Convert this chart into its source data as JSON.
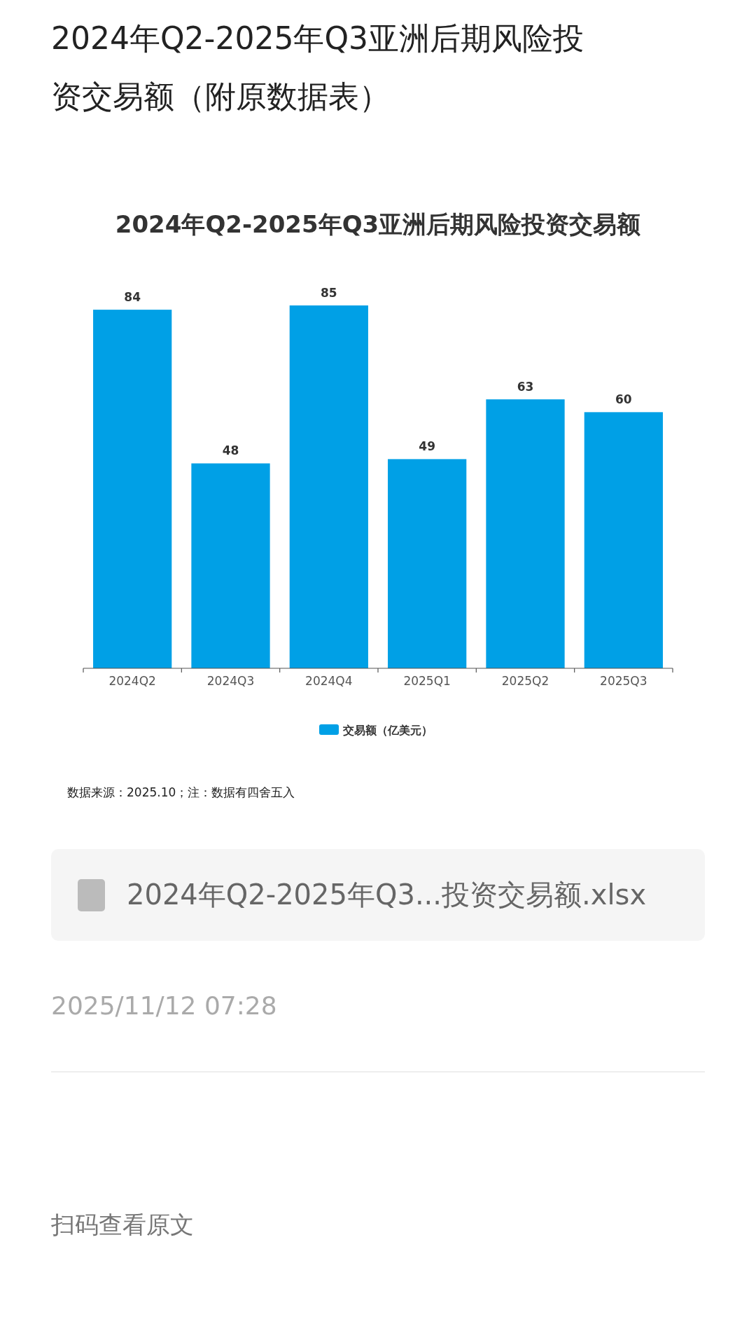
{
  "chart_data": {
    "type": "bar",
    "title": "2024年Q2-2025年Q3亚洲后期风险投资交易额（附原数据表）",
    "subtitle": "2024年Q2-2025年Q3亚洲后期风险投资交易额",
    "categories": [
      "2024Q2",
      "2024Q3",
      "2024Q4",
      "2025Q1",
      "2025Q2",
      "2025Q3"
    ],
    "series": [
      {
        "name": "交易额（亿美元）",
        "color": "#00a0e6",
        "values": [
          84,
          48,
          85,
          49,
          63,
          60
        ]
      }
    ],
    "data_labels": true,
    "legend": "bottom",
    "annotations": [
      "数据来源：2025.10；注：数据有四舍五入",
      "2024年Q2-2025年Q3...投资交易额.xlsx",
      "2025/11/12 07:28",
      "扫码查看原文"
    ]
  }
}
